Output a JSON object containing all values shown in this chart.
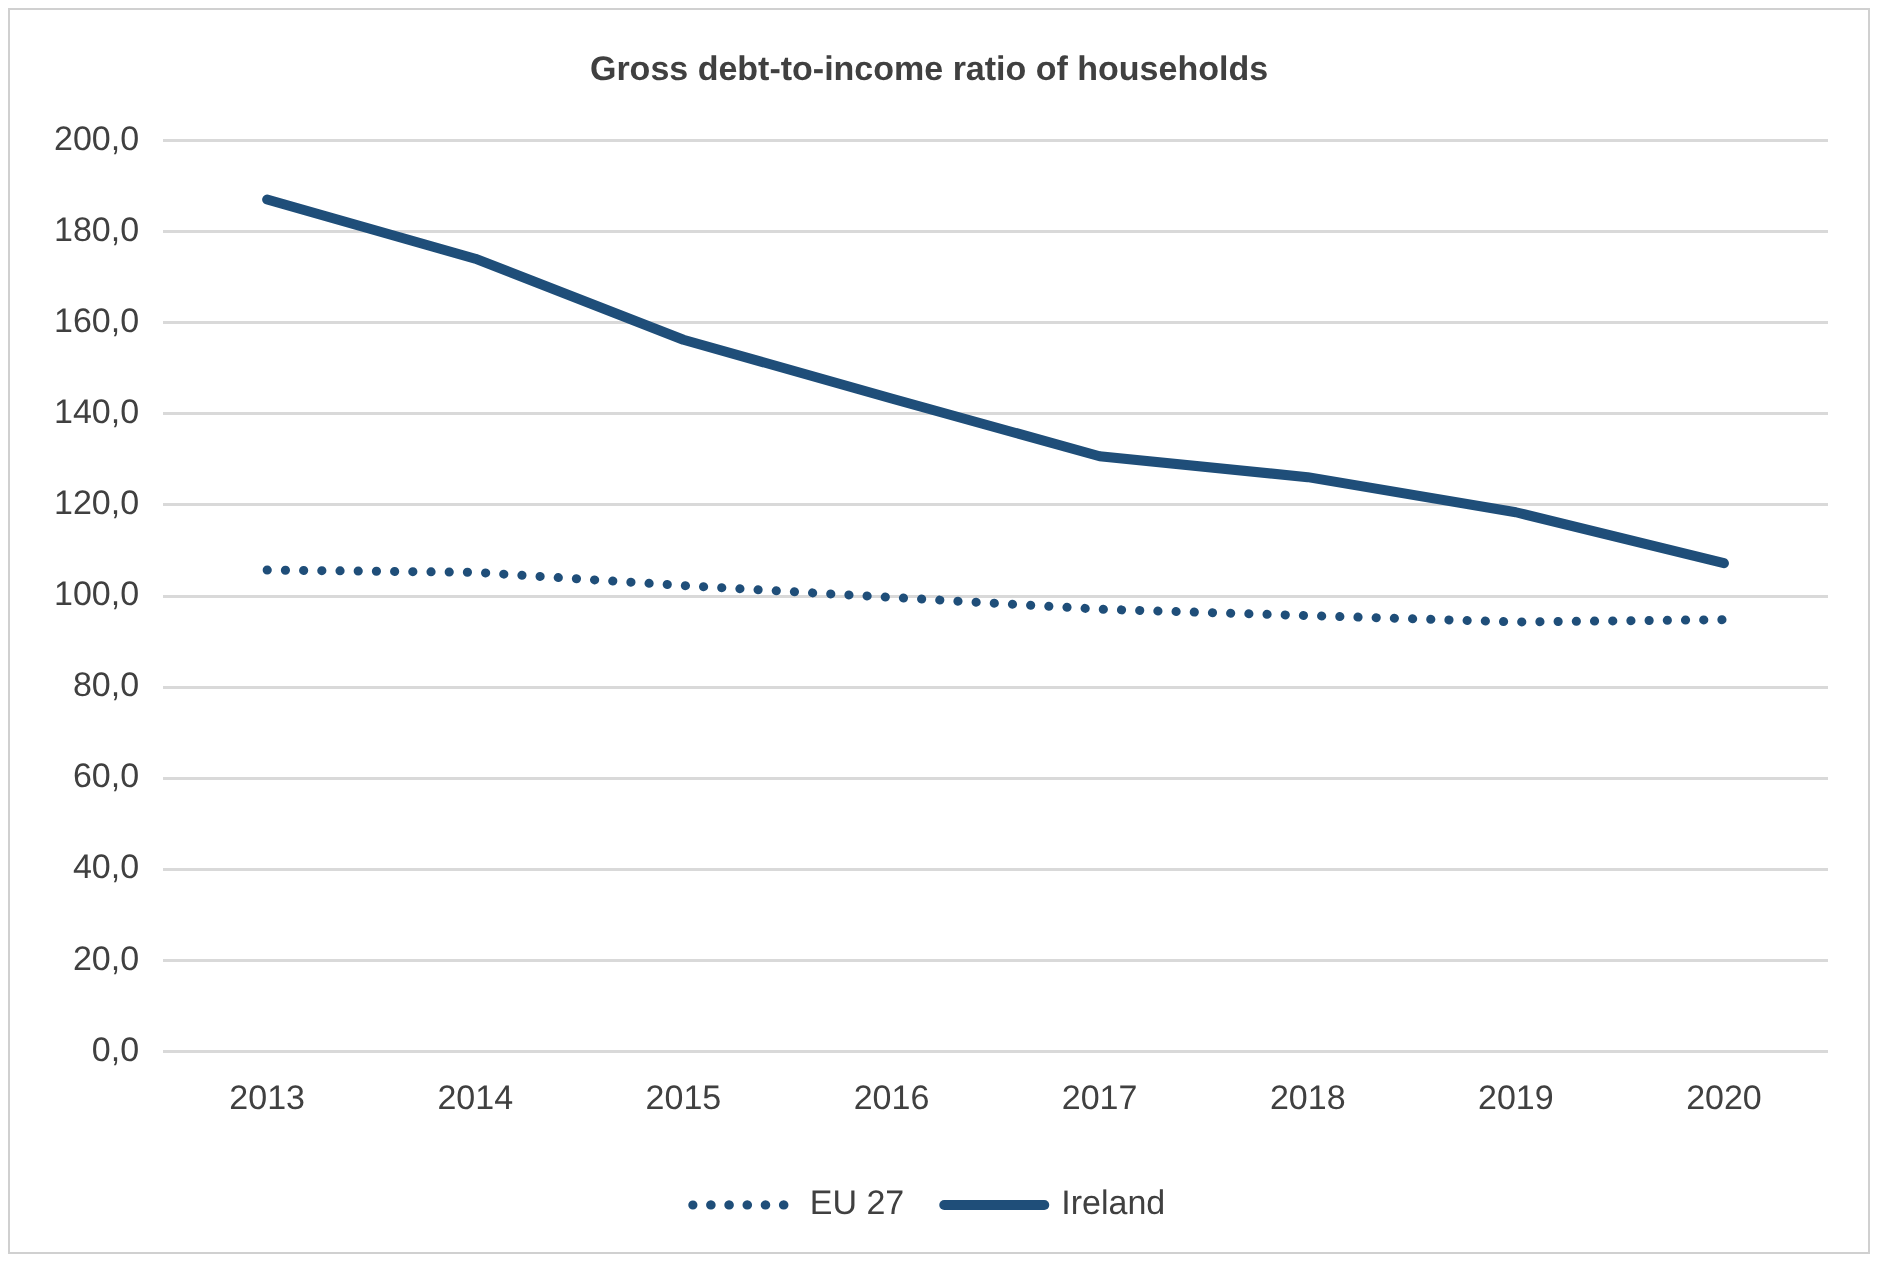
{
  "chart_data": {
    "type": "line",
    "title": "Gross debt-to-income ratio of households",
    "categories": [
      "2013",
      "2014",
      "2015",
      "2016",
      "2017",
      "2018",
      "2019",
      "2020"
    ],
    "series": [
      {
        "name": "EU 27",
        "color": "#1f4e79",
        "line_style": "dotted",
        "values": [
          105.7,
          105.2,
          102.3,
          99.7,
          97.1,
          95.7,
          94.3,
          94.8
        ]
      },
      {
        "name": "Ireland",
        "color": "#1f4e79",
        "line_style": "solid",
        "values": [
          187.1,
          174.1,
          156.3,
          143.4,
          130.7,
          126.1,
          118.4,
          107.2
        ]
      }
    ],
    "ylim": [
      0,
      200
    ],
    "yticks": [
      {
        "value": 0,
        "label": "0,0"
      },
      {
        "value": 20,
        "label": "20,0"
      },
      {
        "value": 40,
        "label": "40,0"
      },
      {
        "value": 60,
        "label": "60,0"
      },
      {
        "value": 80,
        "label": "80,0"
      },
      {
        "value": 100,
        "label": "100,0"
      },
      {
        "value": 120,
        "label": "120,0"
      },
      {
        "value": 140,
        "label": "140,0"
      },
      {
        "value": 160,
        "label": "160,0"
      },
      {
        "value": 180,
        "label": "180,0"
      },
      {
        "value": 200,
        "label": "200,0"
      }
    ],
    "grid": "y",
    "legend": "bottom",
    "marker": "none"
  }
}
